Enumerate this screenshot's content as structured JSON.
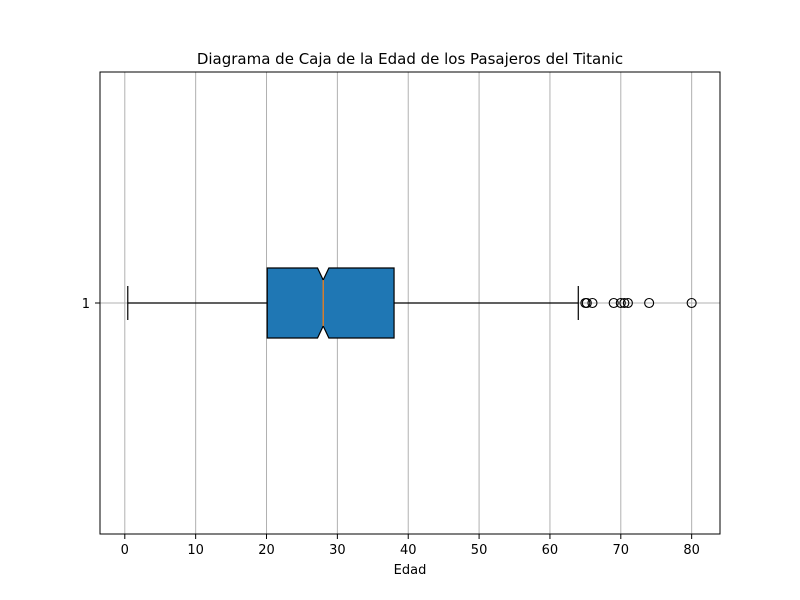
{
  "chart_data": {
    "type": "boxplot",
    "orientation": "horizontal",
    "title": "Diagrama de Caja de la Edad de los Pasajeros del Titanic",
    "xlabel": "Edad",
    "ylabel": "",
    "xlim": [
      -3.5,
      84
    ],
    "x_ticks": [
      0,
      10,
      20,
      30,
      40,
      50,
      60,
      70,
      80
    ],
    "x_tick_labels": [
      "0",
      "10",
      "20",
      "30",
      "40",
      "50",
      "60",
      "70",
      "80"
    ],
    "y_tick_labels": [
      "1"
    ],
    "grid": "vertical",
    "notched": true,
    "box": {
      "category": "1",
      "whisker_low": 0.42,
      "q1": 20.1,
      "median": 28,
      "q3": 38,
      "whisker_high": 64,
      "notch_low": 27.2,
      "notch_high": 28.8,
      "outliers": [
        65,
        65.2,
        66,
        69,
        70,
        70.5,
        71,
        74,
        80
      ]
    },
    "colors": {
      "box_fill": "#1f77b4",
      "median_line": "#ff7f0e",
      "grid": "#b0b0b0",
      "axes": "#000000"
    }
  }
}
